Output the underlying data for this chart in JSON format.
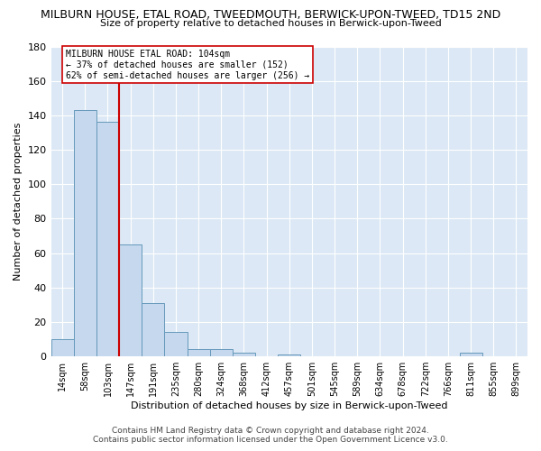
{
  "title": "MILBURN HOUSE, ETAL ROAD, TWEEDMOUTH, BERWICK-UPON-TWEED, TD15 2ND",
  "subtitle": "Size of property relative to detached houses in Berwick-upon-Tweed",
  "xlabel": "Distribution of detached houses by size in Berwick-upon-Tweed",
  "ylabel": "Number of detached properties",
  "bin_labels": [
    "14sqm",
    "58sqm",
    "103sqm",
    "147sqm",
    "191sqm",
    "235sqm",
    "280sqm",
    "324sqm",
    "368sqm",
    "412sqm",
    "457sqm",
    "501sqm",
    "545sqm",
    "589sqm",
    "634sqm",
    "678sqm",
    "722sqm",
    "766sqm",
    "811sqm",
    "855sqm",
    "899sqm"
  ],
  "bar_values": [
    10,
    143,
    136,
    65,
    31,
    14,
    4,
    4,
    2,
    0,
    1,
    0,
    0,
    0,
    0,
    0,
    0,
    0,
    2,
    0,
    0
  ],
  "bar_color": "#c5d8ed",
  "bar_edge_color": "#6699bb",
  "vline_color": "#cc0000",
  "vline_x": 2.5,
  "annotation_title": "MILBURN HOUSE ETAL ROAD: 104sqm",
  "annotation_line1": "← 37% of detached houses are smaller (152)",
  "annotation_line2": "62% of semi-detached houses are larger (256) →",
  "annotation_box_color": "#ffffff",
  "annotation_box_edge": "#cc0000",
  "ylim": [
    0,
    180
  ],
  "yticks": [
    0,
    20,
    40,
    60,
    80,
    100,
    120,
    140,
    160,
    180
  ],
  "fig_bg_color": "#ffffff",
  "plot_bg_color": "#dce8f5",
  "grid_color": "#ffffff",
  "footer_line1": "Contains HM Land Registry data © Crown copyright and database right 2024.",
  "footer_line2": "Contains public sector information licensed under the Open Government Licence v3.0."
}
